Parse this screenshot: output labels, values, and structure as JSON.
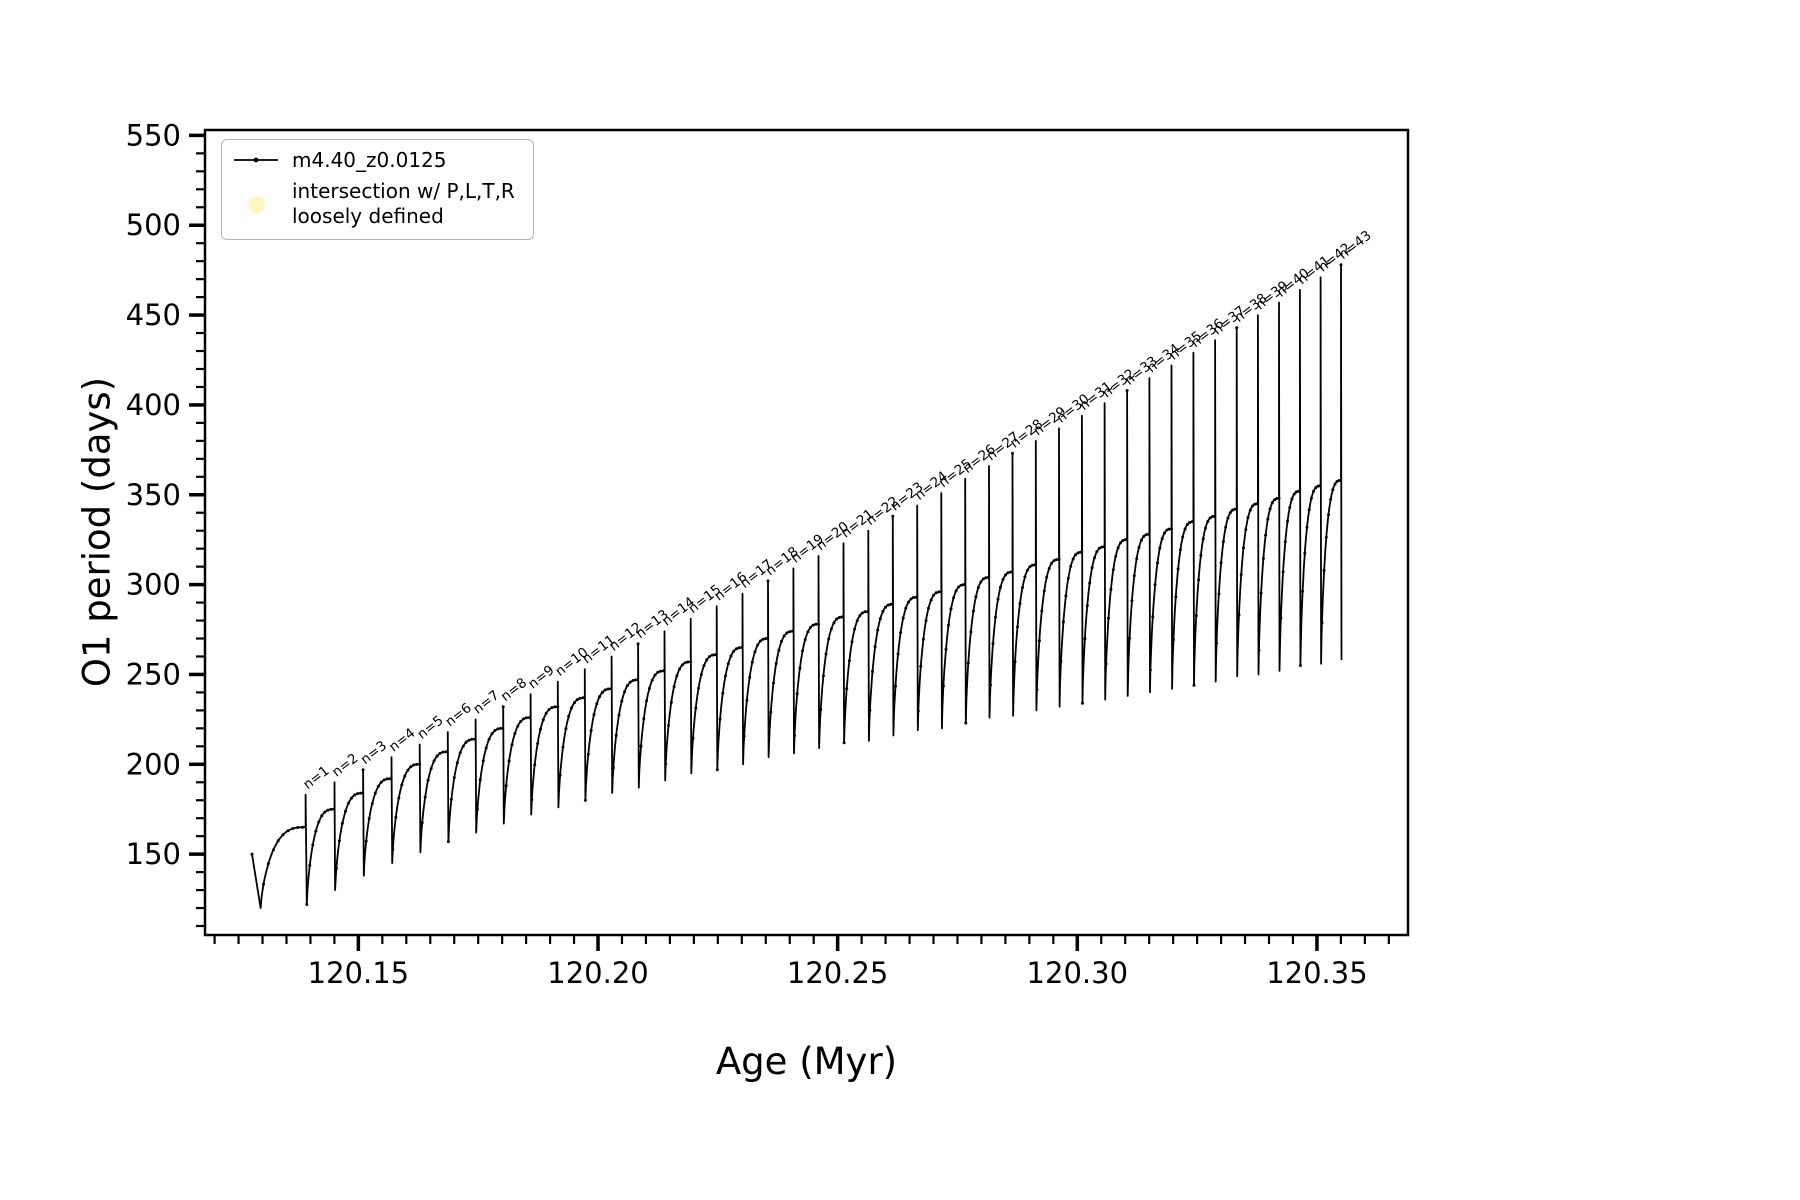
{
  "figure": {
    "background": "#ffffff",
    "axis_color": "#000000"
  },
  "legend": {
    "series1_label": "m4.40_z0.0125",
    "series2_label_line1": "intersection w/ P,L,T,R",
    "series2_label_line2": "loosely defined",
    "series2_marker_color": "#fdf6c3"
  },
  "chart_data": {
    "type": "line",
    "title": "",
    "xlabel": "Age (Myr)",
    "ylabel": "O1 period (days)",
    "xlim": [
      120.118,
      120.369
    ],
    "ylim": [
      105,
      553
    ],
    "x_major_ticks": [
      120.15,
      120.2,
      120.25,
      120.3,
      120.35
    ],
    "x_minor_step": 0.005,
    "y_major_ticks": [
      150,
      200,
      250,
      300,
      350,
      400,
      450,
      500,
      550
    ],
    "y_minor_step": 10,
    "grid": false,
    "legend_position": "upper left",
    "series_color": "#000000",
    "annotation_prefix": "n=",
    "start_point": {
      "x": 120.1278,
      "y": 150
    },
    "initial_dip": {
      "x": 120.1296,
      "y": 120
    },
    "pulses": [
      {
        "n": 1,
        "x": 120.139,
        "peak": 165,
        "spike_top": 183,
        "dip_after": 122
      },
      {
        "n": 2,
        "x": 120.14501,
        "peak": 175,
        "spike_top": 190,
        "dip_after": 130
      },
      {
        "n": 3,
        "x": 120.15099,
        "peak": 184,
        "spike_top": 197,
        "dip_after": 138
      },
      {
        "n": 4,
        "x": 120.15692,
        "peak": 192,
        "spike_top": 204,
        "dip_after": 145
      },
      {
        "n": 5,
        "x": 120.1628,
        "peak": 200,
        "spike_top": 211,
        "dip_after": 151
      },
      {
        "n": 6,
        "x": 120.16865,
        "peak": 207,
        "spike_top": 218,
        "dip_after": 157
      },
      {
        "n": 7,
        "x": 120.17445,
        "peak": 214,
        "spike_top": 225,
        "dip_after": 162
      },
      {
        "n": 8,
        "x": 120.18021,
        "peak": 220,
        "spike_top": 232,
        "dip_after": 167
      },
      {
        "n": 9,
        "x": 120.18593,
        "peak": 226,
        "spike_top": 239,
        "dip_after": 172
      },
      {
        "n": 10,
        "x": 120.1916,
        "peak": 232,
        "spike_top": 246,
        "dip_after": 176
      },
      {
        "n": 11,
        "x": 120.19724,
        "peak": 237,
        "spike_top": 253,
        "dip_after": 180
      },
      {
        "n": 12,
        "x": 120.20283,
        "peak": 242,
        "spike_top": 260,
        "dip_after": 184
      },
      {
        "n": 13,
        "x": 120.20837,
        "peak": 247,
        "spike_top": 267,
        "dip_after": 187
      },
      {
        "n": 14,
        "x": 120.21388,
        "peak": 252,
        "spike_top": 274,
        "dip_after": 191
      },
      {
        "n": 15,
        "x": 120.21934,
        "peak": 257,
        "spike_top": 281,
        "dip_after": 195
      },
      {
        "n": 16,
        "x": 120.22476,
        "peak": 261,
        "spike_top": 288,
        "dip_after": 197
      },
      {
        "n": 17,
        "x": 120.23014,
        "peak": 265,
        "spike_top": 295,
        "dip_after": 200
      },
      {
        "n": 18,
        "x": 120.23547,
        "peak": 270,
        "spike_top": 302,
        "dip_after": 204
      },
      {
        "n": 19,
        "x": 120.24076,
        "peak": 274,
        "spike_top": 309,
        "dip_after": 206
      },
      {
        "n": 20,
        "x": 120.24601,
        "peak": 278,
        "spike_top": 316,
        "dip_after": 209
      },
      {
        "n": 21,
        "x": 120.25122,
        "peak": 282,
        "spike_top": 323,
        "dip_after": 212
      },
      {
        "n": 22,
        "x": 120.25639,
        "peak": 285,
        "spike_top": 330,
        "dip_after": 213
      },
      {
        "n": 23,
        "x": 120.26151,
        "peak": 289,
        "spike_top": 338,
        "dip_after": 216
      },
      {
        "n": 24,
        "x": 120.26659,
        "peak": 293,
        "spike_top": 344,
        "dip_after": 219
      },
      {
        "n": 25,
        "x": 120.27163,
        "peak": 296,
        "spike_top": 351,
        "dip_after": 220
      },
      {
        "n": 26,
        "x": 120.27662,
        "peak": 300,
        "spike_top": 359,
        "dip_after": 223
      },
      {
        "n": 27,
        "x": 120.28157,
        "peak": 304,
        "spike_top": 366,
        "dip_after": 226
      },
      {
        "n": 28,
        "x": 120.28648,
        "peak": 307,
        "spike_top": 373,
        "dip_after": 227
      },
      {
        "n": 29,
        "x": 120.29135,
        "peak": 311,
        "spike_top": 380,
        "dip_after": 230
      },
      {
        "n": 30,
        "x": 120.29618,
        "peak": 314,
        "spike_top": 387,
        "dip_after": 232
      },
      {
        "n": 31,
        "x": 120.30096,
        "peak": 318,
        "spike_top": 394,
        "dip_after": 234
      },
      {
        "n": 32,
        "x": 120.3057,
        "peak": 321,
        "spike_top": 401,
        "dip_after": 236
      },
      {
        "n": 33,
        "x": 120.3104,
        "peak": 325,
        "spike_top": 408,
        "dip_after": 238
      },
      {
        "n": 34,
        "x": 120.31505,
        "peak": 328,
        "spike_top": 415,
        "dip_after": 240
      },
      {
        "n": 35,
        "x": 120.31966,
        "peak": 331,
        "spike_top": 422,
        "dip_after": 242
      },
      {
        "n": 36,
        "x": 120.32423,
        "peak": 335,
        "spike_top": 429,
        "dip_after": 244
      },
      {
        "n": 37,
        "x": 120.32876,
        "peak": 338,
        "spike_top": 436,
        "dip_after": 246
      },
      {
        "n": 38,
        "x": 120.33325,
        "peak": 342,
        "spike_top": 443,
        "dip_after": 249
      },
      {
        "n": 39,
        "x": 120.33769,
        "peak": 345,
        "spike_top": 450,
        "dip_after": 250
      },
      {
        "n": 40,
        "x": 120.34209,
        "peak": 348,
        "spike_top": 457,
        "dip_after": 252
      },
      {
        "n": 41,
        "x": 120.34645,
        "peak": 352,
        "spike_top": 464,
        "dip_after": 255
      },
      {
        "n": 42,
        "x": 120.35076,
        "peak": 355,
        "spike_top": 471,
        "dip_after": 256
      },
      {
        "n": 43,
        "x": 120.35503,
        "peak": 358,
        "spike_top": 478,
        "dip_after": 258
      }
    ]
  }
}
